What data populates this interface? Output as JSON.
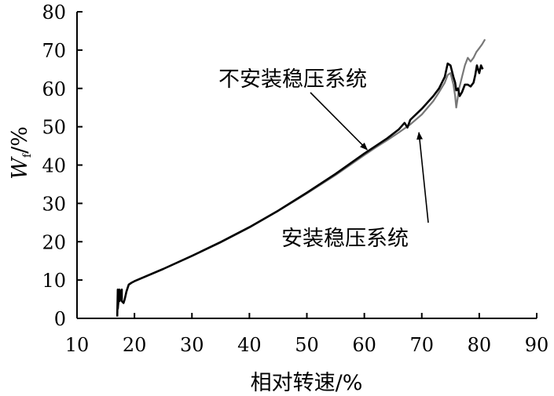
{
  "chart_data": {
    "type": "line",
    "xlabel": "相对转速/%",
    "ylabel": {
      "main": "W",
      "sub": "f",
      "unit": "/%"
    },
    "xlim": [
      10,
      90
    ],
    "ylim": [
      0,
      80
    ],
    "xticks": [
      10,
      20,
      30,
      40,
      50,
      60,
      70,
      80,
      90
    ],
    "yticks": [
      0,
      10,
      20,
      30,
      40,
      50,
      60,
      70,
      80
    ],
    "grid": false,
    "annotations": [
      {
        "text": "不安装稳压系统",
        "target_x": 60.5,
        "target_y": 44.0
      },
      {
        "text": "安装稳压系统",
        "target_x": 69.5,
        "target_y": 48.5
      }
    ],
    "series": [
      {
        "name": "不安装稳压系统",
        "color": "#000000",
        "x": [
          17.0,
          17.1,
          17.1,
          17.4,
          17.4,
          17.8,
          17.8,
          18.1,
          18.3,
          18.6,
          19.0,
          19.5,
          20,
          25,
          30,
          35,
          40,
          45,
          50,
          55,
          60,
          62,
          64,
          66,
          67,
          67.5,
          68,
          70,
          72,
          73,
          74,
          74.5,
          75.0,
          75.5,
          75.8,
          76.0,
          76.3,
          76.6,
          77,
          77.5,
          78,
          78.5,
          79,
          79.3,
          79.6,
          80,
          80.3,
          80.6
        ],
        "y": [
          0.5,
          7.5,
          2.5,
          7.5,
          4.5,
          7.5,
          4.5,
          4.0,
          5.0,
          7.0,
          8.8,
          9.3,
          9.7,
          12.9,
          16.3,
          19.9,
          23.8,
          28.1,
          32.8,
          37.7,
          43.0,
          45.0,
          47.0,
          49.3,
          51.0,
          49.8,
          51.8,
          54.7,
          58.0,
          60.0,
          63.0,
          66.5,
          66.0,
          63.0,
          61.5,
          59.5,
          60.0,
          58.0,
          59.0,
          61.0,
          61.0,
          60.5,
          61.5,
          63.5,
          66.0,
          64.0,
          66.0,
          65.0
        ]
      },
      {
        "name": "安装稳压系统",
        "color": "#777777",
        "x": [
          17.0,
          17.1,
          17.1,
          17.4,
          17.4,
          17.8,
          17.8,
          18.1,
          18.3,
          18.6,
          19.0,
          19.5,
          20,
          25,
          30,
          35,
          40,
          45,
          50,
          55,
          60,
          62,
          64,
          66,
          68,
          70,
          72,
          73,
          74,
          74.5,
          75.0,
          75.5,
          75.8,
          76.0,
          76.2,
          76.5,
          77,
          77.5,
          78,
          78.5,
          79,
          79.5,
          80,
          80.5,
          81.0
        ],
        "y": [
          0.5,
          7.5,
          2.5,
          7.5,
          4.5,
          7.5,
          4.5,
          4.0,
          5.0,
          7.0,
          8.8,
          9.3,
          9.7,
          12.9,
          16.3,
          19.8,
          23.7,
          28.0,
          32.6,
          37.4,
          42.6,
          44.6,
          46.5,
          48.5,
          50.6,
          53.2,
          56.7,
          59.0,
          61.5,
          63.5,
          64.0,
          61.0,
          58.0,
          55.0,
          57.0,
          60.0,
          63.0,
          66.0,
          68.0,
          67.0,
          68.0,
          69.5,
          70.5,
          71.5,
          72.8
        ]
      }
    ]
  }
}
